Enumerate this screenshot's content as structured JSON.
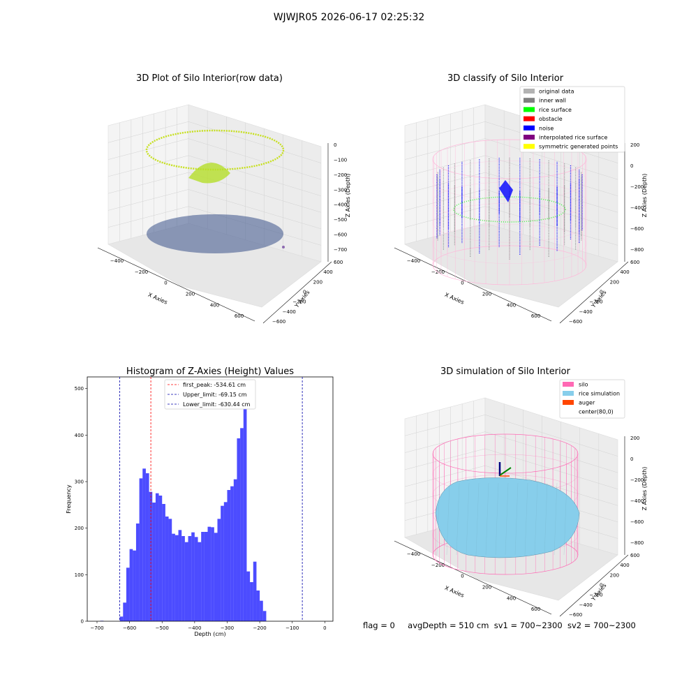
{
  "suptitle": "WJWJR05 2026-06-17 02:25:32",
  "colors": {
    "histogram_bar": "#0000ff",
    "first_peak_line": "#ff0000",
    "limit_lines": "#0000aa",
    "pane_back": "#f2f2f2",
    "silo_wire": "#ff69b4",
    "rice_simulation": "#87ceeb",
    "auger": "#ff4500"
  },
  "panels": {
    "raw": {
      "title": "3D Plot of Silo Interior(row data)",
      "xlabel": "X Axies",
      "ylabel": "Y Axies",
      "zlabel": "Z Axies (Depth)",
      "xticks": [
        "−400",
        "−200",
        "0",
        "200",
        "400",
        "600"
      ],
      "yticks": [
        "−600",
        "−400",
        "−200",
        "0",
        "200",
        "400",
        "600"
      ],
      "zticks": [
        "0",
        "−100",
        "−200",
        "−300",
        "−400",
        "−500",
        "−600",
        "−700"
      ],
      "colormap": "viridis"
    },
    "classify": {
      "title": "3D classify of Silo Interior",
      "xlabel": "X Axies",
      "ylabel": "Y Axies",
      "zlabel": "Z Axies (Depth)",
      "xticks": [
        "−400",
        "−200",
        "0",
        "200",
        "400",
        "600"
      ],
      "yticks": [
        "−600",
        "−400",
        "−200",
        "0",
        "200",
        "400",
        "600"
      ],
      "zticks": [
        "200",
        "0",
        "−200",
        "−400",
        "−600",
        "−800"
      ],
      "legend": [
        {
          "label": "original data",
          "color": "#b3b3b3"
        },
        {
          "label": "inner wall",
          "color": "#808080"
        },
        {
          "label": "rice surface",
          "color": "#00ff00"
        },
        {
          "label": "obstacle",
          "color": "#ff0000"
        },
        {
          "label": "noise",
          "color": "#0000ff"
        },
        {
          "label": "interpolated rice surface",
          "color": "#800080"
        },
        {
          "label": "symmetric generated points",
          "color": "#ffff00"
        }
      ]
    },
    "simulation": {
      "title": "3D simulation of Silo Interior",
      "xlabel": "X Axies",
      "ylabel": "Y Axies",
      "zlabel": "Z Axies (Depth)",
      "xticks": [
        "−400",
        "−200",
        "0",
        "200",
        "400",
        "600"
      ],
      "yticks": [
        "−600",
        "−400",
        "−200",
        "0",
        "200",
        "400",
        "600"
      ],
      "zticks": [
        "200",
        "0",
        "−200",
        "−400",
        "−600",
        "−800"
      ],
      "legend": [
        {
          "label": "silo",
          "color": "#ff69b4"
        },
        {
          "label": "rice simulation",
          "color": "#87ceeb"
        },
        {
          "label": "auger",
          "color": "#ff4500"
        },
        {
          "label": "center(80,0)",
          "color": "none"
        }
      ]
    }
  },
  "chart_data": {
    "type": "bar",
    "title": "Histogram of Z-Axies (Height) Values",
    "xlabel": "Depth (cm)",
    "ylabel": "Frequency",
    "xlim": [
      -730,
      25
    ],
    "ylim": [
      0,
      525
    ],
    "xticks": [
      -700,
      -600,
      -500,
      -400,
      -300,
      -200,
      -100,
      0
    ],
    "xtick_labels": [
      "−700",
      "−600",
      "−500",
      "−400",
      "−300",
      "−200",
      "−100",
      "0"
    ],
    "yticks": [
      0,
      100,
      200,
      300,
      400,
      500
    ],
    "bin_start": -690,
    "bin_width": 10,
    "values": [
      1,
      0,
      0,
      0,
      0,
      0,
      10,
      40,
      115,
      155,
      152,
      210,
      307,
      328,
      318,
      278,
      255,
      275,
      270,
      252,
      225,
      220,
      188,
      185,
      196,
      183,
      170,
      183,
      191,
      181,
      170,
      192,
      192,
      203,
      202,
      190,
      220,
      248,
      256,
      282,
      290,
      305,
      393,
      415,
      500,
      107,
      84,
      128,
      66,
      44,
      22
    ],
    "reference_lines": [
      {
        "label": "first_peak: -534.61 cm",
        "x": -534.61,
        "color": "#ff0000"
      },
      {
        "label": "Upper_limit: -69.15 cm",
        "x": -69.15,
        "color": "#0000aa"
      },
      {
        "label": "Lower_limit: -630.44 cm",
        "x": -630.44,
        "color": "#0000aa"
      }
    ],
    "legend_position": "upper-center"
  },
  "footer": {
    "flag": "flag = 0",
    "avg": "avgDepth = 510 cm",
    "sv1": "sv1 = 700~2300",
    "sv2": "sv2 = 700~2300"
  }
}
